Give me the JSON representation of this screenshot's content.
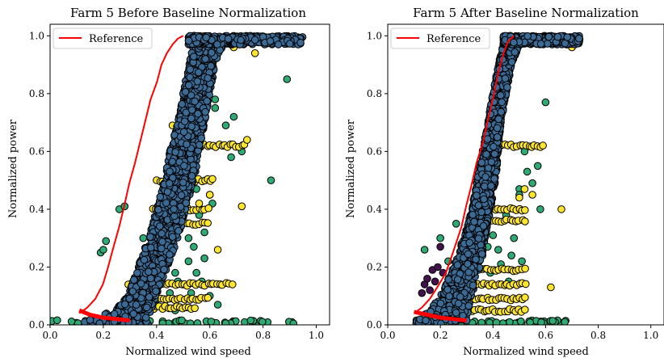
{
  "figure": {
    "colors": {
      "reference": "#ff0000",
      "blue": "#3b6a95",
      "green": "#2eaa74",
      "yellow": "#ffe62d",
      "purple": "#44114f",
      "marker_edge": "#000000"
    }
  },
  "chart_data": [
    {
      "type": "scatter",
      "title": "Farm 5 Before Baseline Normalization",
      "xlabel": "Normalized wind speed",
      "ylabel": "Normalized power",
      "xlim": [
        0.0,
        1.05
      ],
      "ylim": [
        0.0,
        1.04
      ],
      "xticks": [
        "0.0",
        "0.2",
        "0.4",
        "0.6",
        "0.8",
        "1.0"
      ],
      "yticks": [
        "0.0",
        "0.2",
        "0.4",
        "0.6",
        "0.8",
        "1.0"
      ],
      "legend": {
        "position": "top-left",
        "entries": [
          "Reference"
        ]
      },
      "reference_curve": {
        "name": "Reference",
        "x": [
          0.11,
          0.14,
          0.17,
          0.2,
          0.22,
          0.24,
          0.26,
          0.28,
          0.3,
          0.32,
          0.34,
          0.36,
          0.38,
          0.4,
          0.42,
          0.44,
          0.46,
          0.48,
          0.5
        ],
        "y": [
          0.04,
          0.06,
          0.09,
          0.14,
          0.2,
          0.27,
          0.34,
          0.41,
          0.49,
          0.56,
          0.64,
          0.71,
          0.78,
          0.84,
          0.9,
          0.94,
          0.97,
          0.99,
          1.0
        ],
        "tail_x": [
          0.11,
          0.15,
          0.2,
          0.25,
          0.3
        ],
        "tail_y": [
          0.05,
          0.035,
          0.025,
          0.02,
          0.015
        ]
      },
      "blue_band": {
        "name": "blue points",
        "y": [
          0.0,
          0.05,
          0.1,
          0.2,
          0.3,
          0.4,
          0.5,
          0.6,
          0.7,
          0.8,
          0.9,
          0.97,
          1.0
        ],
        "x_lo": [
          0.1,
          0.24,
          0.29,
          0.33,
          0.37,
          0.4,
          0.43,
          0.45,
          0.48,
          0.5,
          0.52,
          0.54,
          0.55
        ],
        "x_hi": [
          0.37,
          0.38,
          0.4,
          0.44,
          0.48,
          0.51,
          0.54,
          0.56,
          0.58,
          0.6,
          0.62,
          0.65,
          0.9
        ]
      },
      "top_cluster": {
        "x": [
          0.52,
          0.95
        ],
        "y": [
          0.97,
          1.0
        ]
      },
      "bottom_row": {
        "x": [
          0.0,
          0.92
        ],
        "y": 0.01
      },
      "yellow_rows": [
        {
          "y": 0.62,
          "x": [
            0.5,
            0.74
          ]
        },
        {
          "y": 0.5,
          "x": [
            0.4,
            0.62
          ]
        },
        {
          "y": 0.4,
          "x": [
            0.38,
            0.6
          ]
        },
        {
          "y": 0.35,
          "x": [
            0.42,
            0.6
          ]
        },
        {
          "y": 0.14,
          "x": [
            0.29,
            0.69
          ]
        },
        {
          "y": 0.09,
          "x": [
            0.3,
            0.6
          ]
        },
        {
          "y": 0.06,
          "x": [
            0.33,
            0.55
          ]
        }
      ],
      "green_points": {
        "x": [
          0.19,
          0.2,
          0.21,
          0.26,
          0.28,
          0.35,
          0.38,
          0.42,
          0.45,
          0.47,
          0.5,
          0.52,
          0.55,
          0.57,
          0.6,
          0.62,
          0.66,
          0.69,
          0.72,
          0.83,
          0.89,
          0.5,
          0.55,
          0.6,
          0.62,
          0.45,
          0.48,
          0.53,
          0.58,
          0.44,
          0.52,
          0.56,
          0.5,
          0.58,
          0.61,
          0.68,
          0.47,
          0.54,
          0.63
        ],
        "y": [
          0.25,
          0.26,
          0.29,
          0.4,
          0.41,
          0.3,
          0.33,
          0.2,
          0.25,
          0.18,
          0.14,
          0.22,
          0.18,
          0.15,
          0.1,
          0.78,
          0.69,
          0.72,
          0.6,
          0.5,
          0.85,
          0.53,
          0.47,
          0.45,
          0.75,
          0.11,
          0.15,
          0.11,
          0.23,
          0.3,
          0.3,
          0.38,
          0.58,
          0.32,
          0.42,
          0.58,
          0.05,
          0.27,
          0.07
        ]
      },
      "extra_yellow_points": {
        "x": [
          0.46,
          0.5,
          0.53,
          0.56,
          0.6,
          0.63,
          0.69,
          0.7,
          0.72,
          0.74,
          0.77
        ],
        "y": [
          0.69,
          0.47,
          0.55,
          0.42,
          0.45,
          0.26,
          0.96,
          0.98,
          0.41,
          0.64,
          0.94
        ]
      },
      "purple_points": {
        "x": [],
        "y": []
      }
    },
    {
      "type": "scatter",
      "title": "Farm 5 After Baseline Normalization",
      "xlabel": "Normalized wind speed",
      "ylabel": "Normalized power",
      "xlim": [
        0.0,
        1.05
      ],
      "ylim": [
        0.0,
        1.04
      ],
      "xticks": [
        "0.0",
        "0.2",
        "0.4",
        "0.6",
        "0.8",
        "1.0"
      ],
      "yticks": [
        "0.0",
        "0.2",
        "0.4",
        "0.6",
        "0.8",
        "1.0"
      ],
      "legend": {
        "position": "top-left",
        "entries": [
          "Reference"
        ]
      },
      "reference_curve": {
        "name": "Reference",
        "x": [
          0.1,
          0.13,
          0.16,
          0.19,
          0.22,
          0.25,
          0.28,
          0.3,
          0.32,
          0.34,
          0.36,
          0.38,
          0.4,
          0.42,
          0.44,
          0.46,
          0.48
        ],
        "y": [
          0.04,
          0.06,
          0.09,
          0.13,
          0.18,
          0.25,
          0.34,
          0.41,
          0.48,
          0.56,
          0.63,
          0.71,
          0.79,
          0.87,
          0.94,
          0.98,
          1.0
        ],
        "tail_x": [
          0.1,
          0.15,
          0.2,
          0.25,
          0.3
        ],
        "tail_y": [
          0.045,
          0.035,
          0.025,
          0.02,
          0.015
        ]
      },
      "blue_band": {
        "name": "blue points",
        "y": [
          0.0,
          0.05,
          0.1,
          0.2,
          0.3,
          0.4,
          0.5,
          0.6,
          0.7,
          0.8,
          0.9,
          0.97,
          1.0
        ],
        "x_lo": [
          0.09,
          0.16,
          0.2,
          0.25,
          0.29,
          0.32,
          0.34,
          0.36,
          0.38,
          0.4,
          0.42,
          0.44,
          0.45
        ],
        "x_hi": [
          0.3,
          0.31,
          0.32,
          0.35,
          0.37,
          0.39,
          0.41,
          0.42,
          0.43,
          0.45,
          0.47,
          0.5,
          0.73
        ]
      },
      "top_cluster": {
        "x": [
          0.44,
          0.73
        ],
        "y": [
          0.97,
          1.0
        ]
      },
      "bottom_row": {
        "x": [
          0.1,
          0.68
        ],
        "y": 0.01
      },
      "yellow_rows": [
        {
          "y": 0.62,
          "x": [
            0.4,
            0.6
          ]
        },
        {
          "y": 0.4,
          "x": [
            0.36,
            0.53
          ]
        },
        {
          "y": 0.36,
          "x": [
            0.36,
            0.53
          ]
        },
        {
          "y": 0.19,
          "x": [
            0.3,
            0.53
          ]
        },
        {
          "y": 0.14,
          "x": [
            0.25,
            0.53
          ]
        },
        {
          "y": 0.09,
          "x": [
            0.25,
            0.53
          ]
        },
        {
          "y": 0.05,
          "x": [
            0.25,
            0.53
          ]
        }
      ],
      "green_points": {
        "x": [
          0.14,
          0.2,
          0.23,
          0.26,
          0.28,
          0.3,
          0.33,
          0.36,
          0.38,
          0.4,
          0.43,
          0.46,
          0.5,
          0.52,
          0.55,
          0.6,
          0.48,
          0.5,
          0.45,
          0.53,
          0.57,
          0.42,
          0.47,
          0.51,
          0.58,
          0.39
        ],
        "y": [
          0.26,
          0.3,
          0.22,
          0.35,
          0.28,
          0.3,
          0.2,
          0.24,
          0.27,
          0.31,
          0.21,
          0.15,
          0.47,
          0.6,
          0.49,
          0.77,
          0.3,
          0.45,
          0.38,
          0.53,
          0.55,
          0.26,
          0.24,
          0.22,
          0.4,
          0.18
        ]
      },
      "extra_yellow_points": {
        "x": [
          0.48,
          0.5,
          0.52,
          0.55,
          0.62,
          0.66,
          0.7,
          0.69
        ],
        "y": [
          0.98,
          0.44,
          0.47,
          0.45,
          0.13,
          0.4,
          0.96,
          0.99
        ]
      },
      "purple_points": {
        "x": [
          0.14,
          0.16,
          0.17,
          0.18,
          0.19,
          0.2,
          0.21,
          0.22,
          0.13,
          0.15
        ],
        "y": [
          0.14,
          0.12,
          0.19,
          0.15,
          0.2,
          0.27,
          0.18,
          0.13,
          0.11,
          0.16
        ]
      }
    }
  ]
}
